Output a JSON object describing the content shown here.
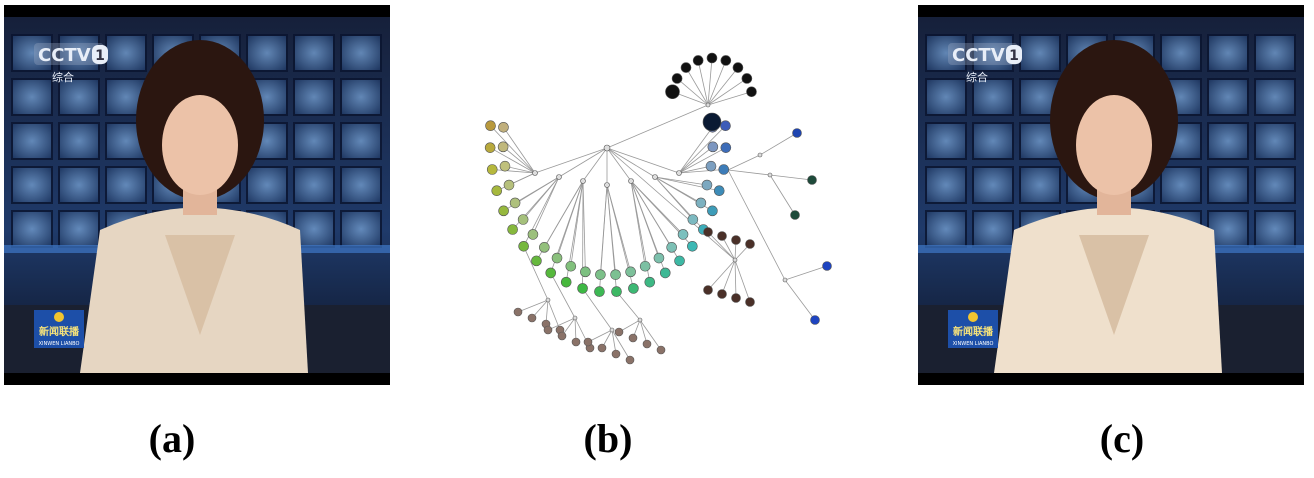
{
  "panels": [
    {
      "label": "(a)",
      "channel": "CCTV",
      "channel_number": "1",
      "channel_name": "综合",
      "program": "新闻联播",
      "program_en": "XINWEN LIANBO"
    },
    {
      "label": "(b)"
    },
    {
      "label": "(c)",
      "channel": "CCTV",
      "channel_number": "1",
      "channel_name": "综合",
      "program": "新闻联播",
      "program_en": "XINWEN LIANBO"
    }
  ]
}
